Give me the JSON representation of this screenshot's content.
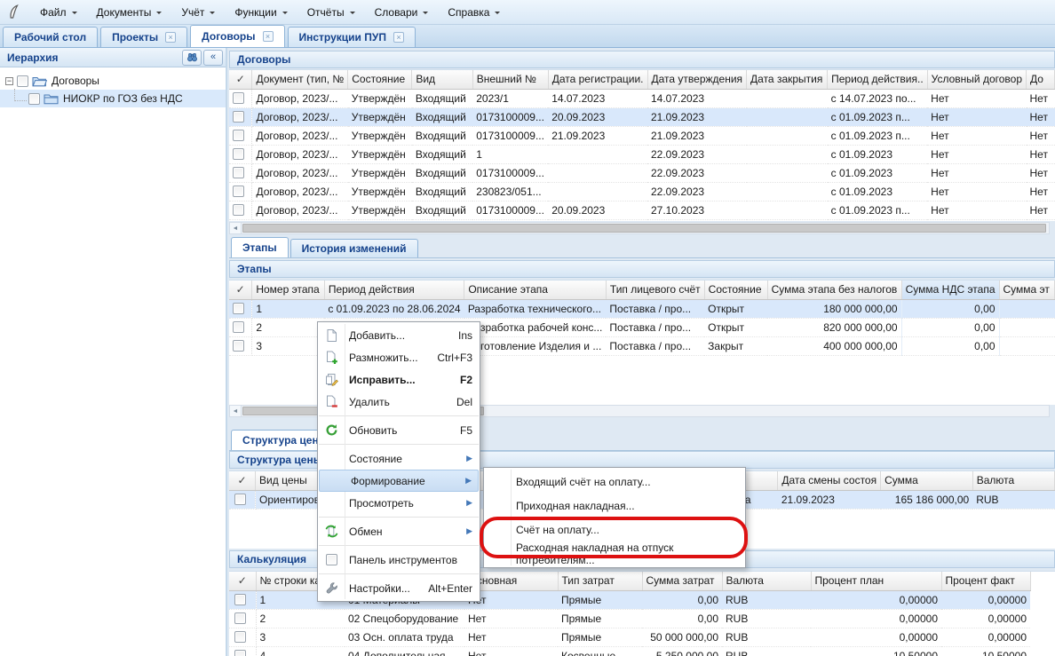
{
  "menubar": {
    "items": [
      "Файл",
      "Документы",
      "Учёт",
      "Функции",
      "Отчёты",
      "Словари",
      "Справка"
    ]
  },
  "tabs": [
    {
      "label": "Рабочий стол",
      "closable": false,
      "active": false
    },
    {
      "label": "Проекты",
      "closable": true,
      "active": false
    },
    {
      "label": "Договоры",
      "closable": true,
      "active": true
    },
    {
      "label": "Инструкции ПУП",
      "closable": true,
      "active": false
    }
  ],
  "sidebar": {
    "title": "Иерархия",
    "tree": [
      {
        "label": "Договоры"
      },
      {
        "label": "НИОКР по ГОЗ без НДС"
      }
    ]
  },
  "contracts": {
    "title": "Договоры",
    "columns": [
      "✓",
      "Документ (тип, №",
      "Состояние",
      "Вид",
      "Внешний №",
      "Дата регистрации.",
      "Дата утверждения",
      "Дата закрытия",
      "Период действия..",
      "Условный договор",
      "До"
    ],
    "selected_row": 1,
    "rows": [
      [
        "Договор, 2023/...",
        "Утверждён",
        "Входящий",
        "2023/1",
        "14.07.2023",
        "14.07.2023",
        "",
        "с 14.07.2023 по...",
        "Нет",
        "Нет"
      ],
      [
        "Договор, 2023/...",
        "Утверждён",
        "Входящий",
        "0173100009...",
        "20.09.2023",
        "21.09.2023",
        "",
        "с 01.09.2023 п...",
        "Нет",
        "Нет"
      ],
      [
        "Договор, 2023/...",
        "Утверждён",
        "Входящий",
        "0173100009...",
        "21.09.2023",
        "21.09.2023",
        "",
        "с 01.09.2023 п...",
        "Нет",
        "Нет"
      ],
      [
        "Договор, 2023/...",
        "Утверждён",
        "Входящий",
        "1",
        "",
        "22.09.2023",
        "",
        "с 01.09.2023",
        "Нет",
        "Нет"
      ],
      [
        "Договор, 2023/...",
        "Утверждён",
        "Входящий",
        "0173100009...",
        "",
        "22.09.2023",
        "",
        "с 01.09.2023",
        "Нет",
        "Нет"
      ],
      [
        "Договор, 2023/...",
        "Утверждён",
        "Входящий",
        "230823/051...",
        "",
        "22.09.2023",
        "",
        "с 01.09.2023",
        "Нет",
        "Нет"
      ],
      [
        "Договор, 2023/...",
        "Утверждён",
        "Входящий",
        "0173100009...",
        "20.09.2023",
        "27.10.2023",
        "",
        "с 01.09.2023 п...",
        "Нет",
        "Нет"
      ]
    ]
  },
  "section_tabs": {
    "etapy": "Этапы",
    "history": "История изменений",
    "price": "Структура цены"
  },
  "etapy": {
    "title": "Этапы",
    "columns": [
      "✓",
      "Номер этапа",
      "Период действия",
      "Описание этапа",
      "Тип лицевого счёт",
      "Состояние",
      "Сумма этапа без налогов",
      "Сумма НДС этапа",
      "Сумма эт"
    ],
    "selected_row": 0,
    "rows": [
      [
        "1",
        "с 01.09.2023 по 28.06.2024",
        "Разработка технического...",
        "Поставка / про...",
        "Открыт",
        "180 000 000,00",
        "0,00",
        ""
      ],
      [
        "2",
        "",
        "Разработка рабочей конс...",
        "Поставка / про...",
        "Открыт",
        "820 000 000,00",
        "0,00",
        ""
      ],
      [
        "3",
        "",
        "Изготовление Изделия и ...",
        "Поставка / про...",
        "Закрыт",
        "400 000 000,00",
        "0,00",
        ""
      ]
    ]
  },
  "price_structure": {
    "title": "Структура цены",
    "columns": [
      "✓",
      "Вид цены",
      "Состояние",
      "Дата смены состоя",
      "Сумма",
      "Валюта"
    ],
    "selected_row": 0,
    "rows": [
      [
        "Ориентировочная",
        "Утверждена",
        "21.09.2023",
        "165 186 000,00",
        "RUB"
      ]
    ]
  },
  "calculation": {
    "title": "Калькуляция",
    "columns": [
      "✓",
      "№ строки кал",
      "",
      "Основная",
      "Тип затрат",
      "Сумма затрат",
      "Валюта",
      "Процент план",
      "Процент факт"
    ],
    "selected_row": 0,
    "rows": [
      [
        "1",
        "01 Материалы",
        "Нет",
        "Прямые",
        "0,00",
        "RUB",
        "0,00000",
        "0,00000"
      ],
      [
        "2",
        "02 Спецоборудование",
        "Нет",
        "Прямые",
        "0,00",
        "RUB",
        "0,00000",
        "0,00000"
      ],
      [
        "3",
        "03 Осн. оплата труда",
        "Нет",
        "Прямые",
        "50 000 000,00",
        "RUB",
        "0,00000",
        "0,00000"
      ],
      [
        "4",
        "04 Дополнительная...",
        "Нет",
        "Косвенные",
        "5 250 000,00",
        "RUB",
        "10,50000",
        "10,50000"
      ]
    ]
  },
  "context_menu": {
    "items": [
      {
        "label": "Добавить...",
        "shortcut": "Ins"
      },
      {
        "label": "Размножить...",
        "shortcut": "Ctrl+F3"
      },
      {
        "label": "Исправить...",
        "shortcut": "F2"
      },
      {
        "label": "Удалить",
        "shortcut": "Del"
      },
      {
        "label": "Обновить",
        "shortcut": "F5"
      },
      {
        "label": "Состояние"
      },
      {
        "label": "Формирование"
      },
      {
        "label": "Просмотреть"
      },
      {
        "label": "Обмен"
      },
      {
        "label": "Панель инструментов"
      },
      {
        "label": "Настройки...",
        "shortcut": "Alt+Enter"
      }
    ]
  },
  "submenu": {
    "items": [
      {
        "label": "Входящий счёт на оплату..."
      },
      {
        "label": "Приходная накладная..."
      },
      {
        "label": "Счёт на оплату..."
      },
      {
        "label": "Расходная накладная на отпуск потребителям..."
      }
    ]
  },
  "colors": {
    "accent": "#15428b",
    "selection": "#d9e8fb",
    "annotation": "#dd1111"
  }
}
